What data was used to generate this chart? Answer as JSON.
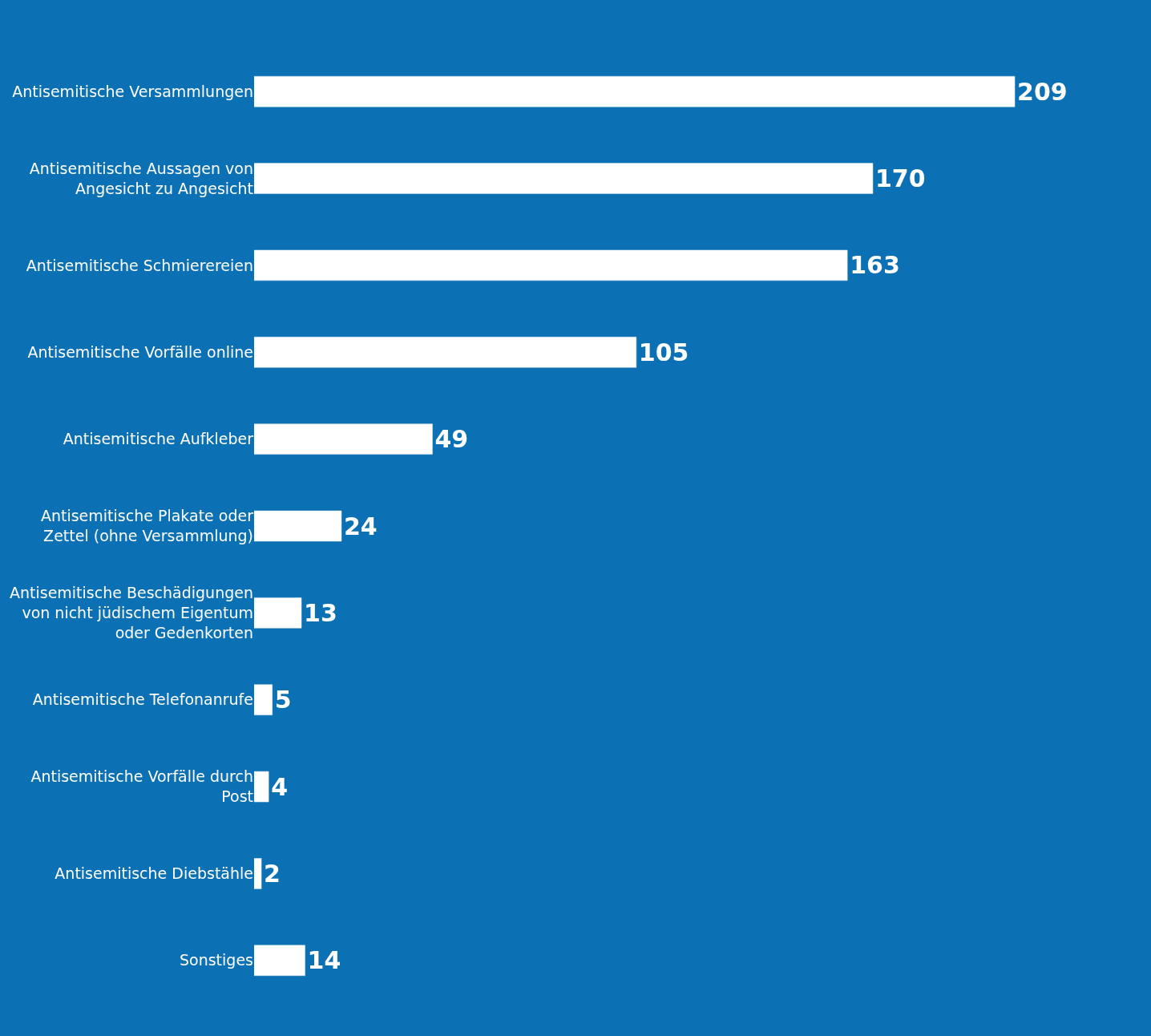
{
  "chart_data": {
    "type": "bar",
    "orientation": "horizontal",
    "categories": [
      "Antisemitische Versammlungen",
      "Antisemitische Aussagen von Angesicht zu Angesicht",
      "Antisemitische Schmierereien",
      "Antisemitische Vorfälle online",
      "Antisemitische Aufkleber",
      "Antisemitische Plakate oder Zettel (ohne Versammlung)",
      "Antisemitische Beschädigungen von nicht jüdischem Eigentum oder Gedenkorten",
      "Antisemitische Telefonanrufe",
      "Antisemitische Vorfälle durch Post",
      "Antisemitische Diebstähle",
      "Sonstiges"
    ],
    "values": [
      209,
      170,
      163,
      105,
      49,
      24,
      13,
      5,
      4,
      2,
      14
    ],
    "color": "#ffffff",
    "data_labels": true,
    "legend": false
  }
}
